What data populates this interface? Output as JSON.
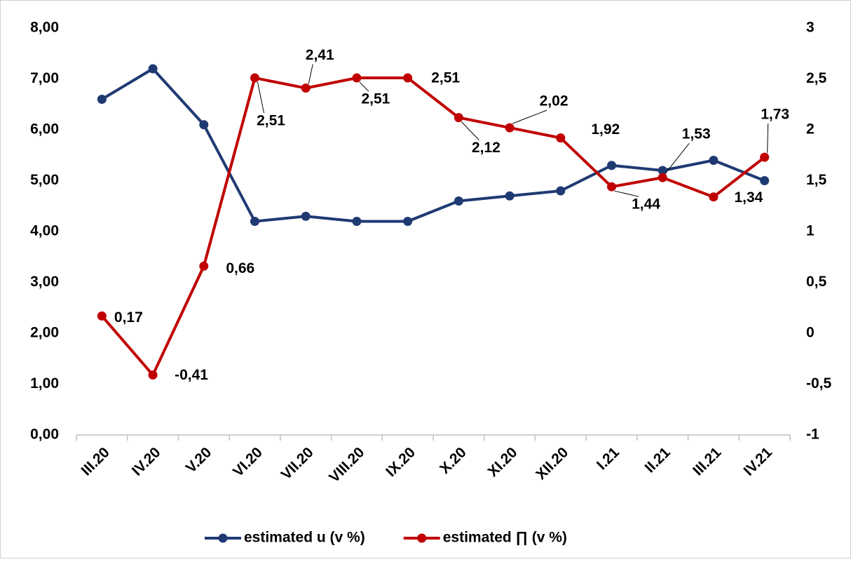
{
  "chart_data": {
    "type": "line",
    "categories": [
      "III.20",
      "IV.20",
      "V.20",
      "VI.20",
      "VII.20",
      "VIII.20",
      "IX.20",
      "X.20",
      "XI.20",
      "XII.20",
      "I.21",
      "II.21",
      "III.21",
      "IV.21"
    ],
    "series": [
      {
        "name": "estimated u (v %)",
        "color": "#1f3a73",
        "values": [
          6.6,
          7.2,
          6.1,
          4.2,
          4.3,
          4.2,
          4.2,
          4.6,
          4.7,
          4.8,
          5.3,
          5.2,
          5.4,
          5.0
        ]
      },
      {
        "name": "estimated ∏ (v %)",
        "color": "#c00000",
        "axis": "y2",
        "values": [
          0.17,
          -0.41,
          0.66,
          2.51,
          2.41,
          2.51,
          2.51,
          2.12,
          2.02,
          1.92,
          1.44,
          1.53,
          1.34,
          1.73
        ],
        "value_labels": [
          "0,17",
          "-0,41",
          "0,66",
          "2,51",
          "2,41",
          "2,51",
          "2,51",
          "2,12",
          "2,02",
          "1,92",
          "1,44",
          "1,53",
          "1,34",
          "1,73"
        ]
      }
    ],
    "ylim": [
      0,
      8
    ],
    "yticks": [
      {
        "value": 0,
        "label": "0,00"
      },
      {
        "value": 1,
        "label": "1,00"
      },
      {
        "value": 2,
        "label": "2,00"
      },
      {
        "value": 3,
        "label": "3,00"
      },
      {
        "value": 4,
        "label": "4,00"
      },
      {
        "value": 5,
        "label": "5,00"
      },
      {
        "value": 6,
        "label": "6,00"
      },
      {
        "value": 7,
        "label": "7,00"
      },
      {
        "value": 8,
        "label": "8,00"
      }
    ],
    "y2lim": [
      -1,
      3
    ],
    "y2ticks": [
      -1,
      {
        "value": -0.5,
        "label": "-0,5"
      },
      0,
      {
        "value": 0.5,
        "label": "0,5"
      },
      1,
      {
        "value": 1.5,
        "label": "1,5"
      },
      2,
      {
        "value": 2.5,
        "label": "2,5"
      },
      3
    ],
    "legend": "bottom"
  }
}
